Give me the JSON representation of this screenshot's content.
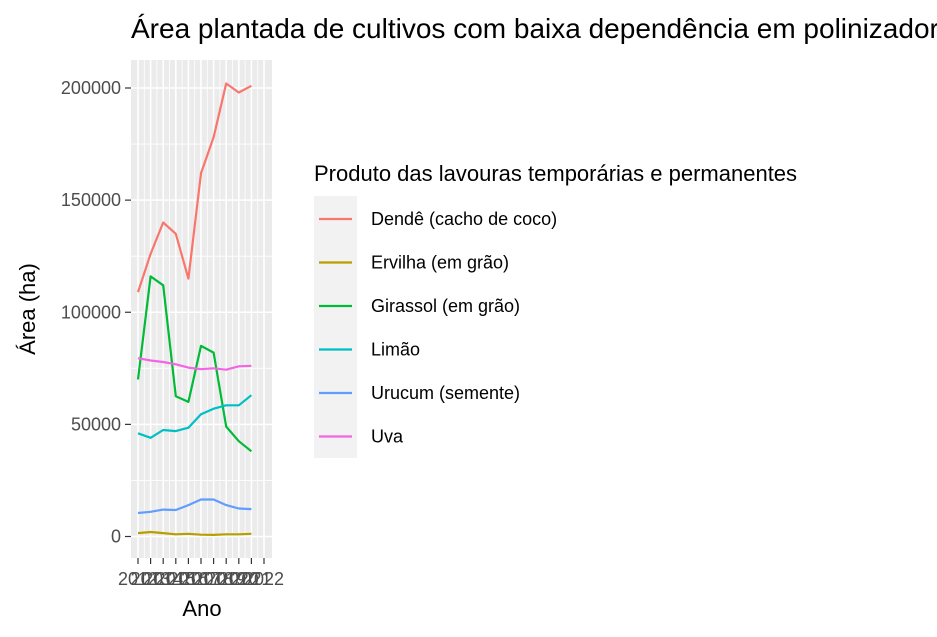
{
  "chart_data": {
    "type": "line",
    "title": "Área plantada de cultivos com baixa dependência em polinizadores",
    "xlabel": "Ano",
    "ylabel": "Área (ha)",
    "x": [
      2012,
      2013,
      2014,
      2015,
      2016,
      2017,
      2018,
      2019,
      2020,
      2021,
      2022
    ],
    "x_tick_labels": [
      "2012",
      "2013",
      "2014",
      "2015",
      "2016",
      "2017",
      "2018",
      "2019",
      "2020",
      "2021",
      "2022"
    ],
    "xlim": [
      2012,
      2022
    ],
    "ylim": [
      0,
      210000
    ],
    "y_ticks": [
      0,
      50000,
      100000,
      150000,
      200000
    ],
    "y_tick_labels": [
      "0",
      "50000",
      "100000",
      "150000",
      "200000"
    ],
    "grid": true,
    "legend_position": "right",
    "legend_title": "Produto das lavouras temporárias e permanentes",
    "series": [
      {
        "name": "Dendê (cacho de coco)",
        "color": "#F8766D",
        "values": [
          109000,
          126000,
          140000,
          135000,
          115000,
          162000,
          178000,
          202000,
          198000,
          201000,
          null
        ]
      },
      {
        "name": "Ervilha (em grão)",
        "color": "#B79F00",
        "values": [
          1500,
          2000,
          1500,
          1000,
          1200,
          800,
          700,
          1000,
          1000,
          1200,
          null
        ]
      },
      {
        "name": "Girassol (em grão)",
        "color": "#00BA38",
        "values": [
          70000,
          116000,
          112000,
          62500,
          60000,
          85000,
          82000,
          49000,
          42500,
          38000,
          null
        ]
      },
      {
        "name": "Limão",
        "color": "#00BFC4",
        "values": [
          46000,
          44000,
          47500,
          47000,
          48500,
          54500,
          57000,
          58500,
          58500,
          63000,
          null
        ]
      },
      {
        "name": "Urucum (semente)",
        "color": "#619CFF",
        "values": [
          10500,
          11000,
          12000,
          11800,
          14000,
          16500,
          16500,
          14000,
          12500,
          12200,
          null
        ]
      },
      {
        "name": "Uva",
        "color": "#F564E3",
        "values": [
          79500,
          78500,
          77800,
          76800,
          75300,
          74600,
          75000,
          74400,
          75900,
          76100,
          null
        ]
      }
    ]
  }
}
